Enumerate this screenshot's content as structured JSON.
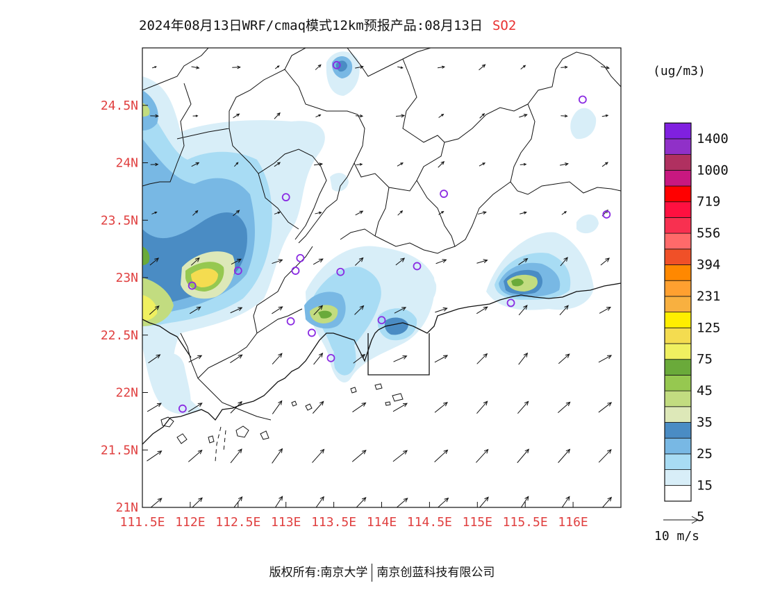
{
  "title": {
    "text": "2024年08月13日WRF/cmaq模式12km预报产品:08月13日",
    "species": "SO2"
  },
  "map": {
    "lon_range": [
      111.5,
      116.5
    ],
    "lat_range": [
      21.0,
      25.0
    ],
    "lon_ticks": [
      "111.5E",
      "112E",
      "112.5E",
      "113E",
      "113.5E",
      "114E",
      "114.5E",
      "115E",
      "115.5E",
      "116E"
    ],
    "lat_ticks": [
      "21N",
      "21.5N",
      "22N",
      "22.5N",
      "23N",
      "23.5N",
      "24N",
      "24.5N"
    ],
    "stations": [
      {
        "lon": 113.53,
        "lat": 24.85
      },
      {
        "lon": 116.1,
        "lat": 24.55
      },
      {
        "lon": 114.65,
        "lat": 23.73
      },
      {
        "lon": 116.35,
        "lat": 23.55
      },
      {
        "lon": 113.0,
        "lat": 23.7
      },
      {
        "lon": 113.15,
        "lat": 23.17
      },
      {
        "lon": 113.1,
        "lat": 23.06
      },
      {
        "lon": 112.5,
        "lat": 23.06
      },
      {
        "lon": 112.02,
        "lat": 22.93
      },
      {
        "lon": 113.57,
        "lat": 23.05
      },
      {
        "lon": 114.37,
        "lat": 23.1
      },
      {
        "lon": 113.05,
        "lat": 22.62
      },
      {
        "lon": 113.27,
        "lat": 22.52
      },
      {
        "lon": 114.0,
        "lat": 22.63
      },
      {
        "lon": 115.35,
        "lat": 22.78
      },
      {
        "lon": 113.47,
        "lat": 22.3
      },
      {
        "lon": 111.92,
        "lat": 21.86
      }
    ]
  },
  "colorbar": {
    "unit": "(ug/m3)",
    "labels": [
      "1400",
      "1000",
      "719",
      "556",
      "394",
      "231",
      "125",
      "75",
      "45",
      "35",
      "25",
      "15",
      "5"
    ],
    "colors": [
      "#ffffff",
      "#d8eef8",
      "#a8dcf4",
      "#78b8e4",
      "#4a8cc4",
      "#dde8b8",
      "#c2dc80",
      "#96c850",
      "#6aaa3a",
      "#f0f060",
      "#f4dc50",
      "#ffee00",
      "#f8b040",
      "#ffa030",
      "#ff8800",
      "#f05028",
      "#ff6a6a",
      "#f83050",
      "#ff1040",
      "#ff0000",
      "#c81880",
      "#b03060",
      "#9030c8",
      "#8020e0"
    ]
  },
  "wind_legend": {
    "label": "10 m/s"
  },
  "footer": {
    "left": "版权所有:南京大学",
    "right": "南京创蓝科技有限公司"
  }
}
